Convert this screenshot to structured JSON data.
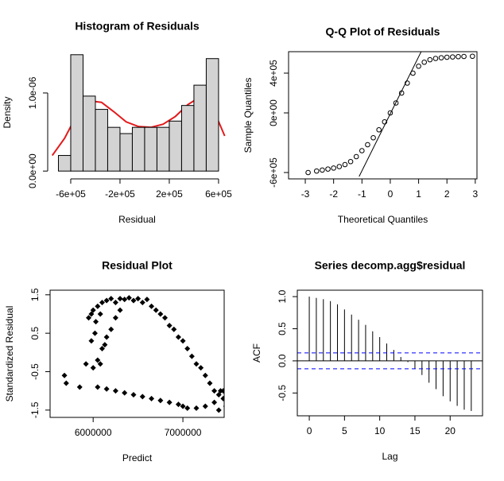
{
  "chart_data": [
    {
      "type": "histogram",
      "title": "Histogram of Residuals",
      "x_label": "Residual",
      "y_label": "Density",
      "bins": [
        -700000,
        -600000,
        -500000,
        -400000,
        -300000,
        -200000,
        -100000,
        0,
        100000,
        200000,
        300000,
        400000,
        500000,
        600000
      ],
      "values": [
        2e-07,
        1.49e-06,
        9.6e-07,
        7.9e-07,
        5.6e-07,
        4.8e-07,
        5.6e-07,
        5.6e-07,
        5.6e-07,
        6.4e-07,
        8.4e-07,
        1.1e-06,
        1.44e-06
      ],
      "color": "#d3d3d3",
      "curve": {
        "color": "#e31a1c",
        "x": [
          -750000,
          -650000,
          -550000,
          -450000,
          -350000,
          -250000,
          -150000,
          -50000,
          50000,
          150000,
          250000,
          350000,
          450000,
          550000,
          650000
        ],
        "values": [
          2e-07,
          4.2e-07,
          7.2e-07,
          9e-07,
          8.8e-07,
          7.6e-07,
          6.3e-07,
          5.7e-07,
          5.6e-07,
          6e-07,
          7e-07,
          8.5e-07,
          9.5e-07,
          8.2e-07,
          4.5e-07
        ]
      },
      "xlim": [
        -787000,
        665000
      ],
      "ylim": [
        -1e-07,
        1.6e-06
      ],
      "xticks": [
        {
          "value": -600000,
          "label": "-6e+05"
        },
        {
          "value": -200000,
          "label": "-2e+05"
        },
        {
          "value": 200000,
          "label": "2e+05"
        },
        {
          "value": 600000,
          "label": "6e+05"
        }
      ],
      "yticks": [
        {
          "value": 0,
          "label": "0.0e+00"
        },
        {
          "value": 1e-06,
          "label": "1.0e-06"
        }
      ]
    },
    {
      "type": "scatter",
      "title": "Q-Q Plot of Residuals",
      "x_label": "Theoretical Quantiles",
      "y_label": "Sample Quantiles",
      "marker": "circle",
      "color": "#000000",
      "x": [
        -2.9,
        -2.6,
        -2.4,
        -2.2,
        -2.0,
        -1.8,
        -1.6,
        -1.4,
        -1.2,
        -1.0,
        -0.8,
        -0.6,
        -0.4,
        -0.2,
        0,
        0.2,
        0.4,
        0.6,
        0.8,
        1.0,
        1.2,
        1.4,
        1.6,
        1.8,
        2.0,
        2.2,
        2.4,
        2.6,
        2.9
      ],
      "values": [
        -600000,
        -585000,
        -575000,
        -565000,
        -555000,
        -540000,
        -520000,
        -490000,
        -440000,
        -380000,
        -320000,
        -250000,
        -170000,
        -90000,
        0,
        100000,
        200000,
        300000,
        400000,
        470000,
        510000,
        535000,
        548000,
        555000,
        560000,
        563000,
        566000,
        568000,
        570000
      ],
      "line": {
        "color": "#000000",
        "x": [
          -1.1,
          1.09
        ],
        "values": [
          -640000,
          616000
        ]
      },
      "xlim": [
        -3.59,
        3.06
      ],
      "ylim": [
        -664000,
        616000
      ],
      "xticks": [
        -3,
        -2,
        -1,
        0,
        1,
        2,
        3
      ],
      "yticks": [
        {
          "value": -600000,
          "label": "-6e+05"
        },
        {
          "value": 0,
          "label": "0e+00"
        },
        {
          "value": 400000,
          "label": "4e+05"
        }
      ]
    },
    {
      "type": "scatter",
      "title": "Residual Plot",
      "x_label": "Predict",
      "y_label": "Standardized Residual",
      "marker": "diamond",
      "color": "#000000",
      "x": [
        5950000,
        5980000,
        6000000,
        6030000,
        6050000,
        6080000,
        6100000,
        6150000,
        6200000,
        6250000,
        6300000,
        6350000,
        6400000,
        6450000,
        6500000,
        6550000,
        6600000,
        6650000,
        6700000,
        6750000,
        6800000,
        6850000,
        6900000,
        6950000,
        7000000,
        7050000,
        7100000,
        7150000,
        7200000,
        7250000,
        7300000,
        7350000,
        7400000,
        7450000,
        7500000,
        6000000,
        6050000,
        6100000,
        6150000,
        6200000,
        6250000,
        6300000,
        6080000,
        6130000,
        5680000,
        5700000,
        5850000,
        5920000,
        5980000,
        6020000,
        6050000,
        6150000,
        6250000,
        6350000,
        6450000,
        6550000,
        6650000,
        6750000,
        6850000,
        6950000,
        7050000,
        7150000,
        7250000,
        7350000,
        7420000,
        7480000,
        7400000,
        7000000,
        7450000,
        7520000,
        7550000
      ],
      "values": [
        0.9,
        1.0,
        1.1,
        0.8,
        1.2,
        1.0,
        1.3,
        1.35,
        1.4,
        1.3,
        1.4,
        1.38,
        1.42,
        1.35,
        1.4,
        1.3,
        1.38,
        1.2,
        1.1,
        1.0,
        0.9,
        0.7,
        0.6,
        0.4,
        0.3,
        0.1,
        -0.1,
        -0.3,
        -0.4,
        -0.6,
        -0.8,
        -1.0,
        -1.1,
        -1.2,
        -1.3,
        -0.4,
        -0.2,
        0.1,
        0.4,
        0.6,
        0.9,
        1.1,
        -0.3,
        0.2,
        -0.6,
        -0.8,
        -0.9,
        -0.3,
        0.3,
        0.5,
        -0.9,
        -0.95,
        -1.0,
        -1.05,
        -1.1,
        -1.15,
        -1.2,
        -1.25,
        -1.3,
        -1.35,
        -1.45,
        -1.45,
        -1.4,
        -1.3,
        -1.0,
        -1.4,
        -1.5,
        -1.4,
        -1.0,
        -1.1,
        -1.2
      ],
      "xlim": [
        5520000,
        7460000
      ],
      "ylim": [
        -1.69,
        1.62
      ],
      "xticks": [
        6000000,
        7000000
      ],
      "yticks": [
        -1.5,
        -0.5,
        0.5,
        1.5
      ]
    },
    {
      "type": "stem",
      "title": "Series  decomp.agg$residual",
      "x_label": "Lag",
      "y_label": "ACF",
      "color": "#000000",
      "x": [
        0,
        1,
        2,
        3,
        4,
        5,
        6,
        7,
        8,
        9,
        10,
        11,
        12,
        13,
        14,
        15,
        16,
        17,
        18,
        19,
        20,
        21,
        22,
        23
      ],
      "values": [
        1.0,
        0.98,
        0.96,
        0.93,
        0.88,
        0.8,
        0.72,
        0.64,
        0.56,
        0.46,
        0.37,
        0.27,
        0.17,
        0.06,
        -0.02,
        -0.12,
        -0.22,
        -0.34,
        -0.44,
        -0.55,
        -0.63,
        -0.7,
        -0.76,
        -0.78
      ],
      "ci_lines": [
        0.124,
        -0.124
      ],
      "ci_color": "#0000ff",
      "xlim": [
        -1.7,
        24.6
      ],
      "ylim": [
        -0.855,
        1.1
      ],
      "xticks": [
        0,
        5,
        10,
        15,
        20
      ],
      "yticks": [
        -0.5,
        {
          "value": 0,
          "label": "0.0"
        },
        0.5,
        {
          "value": 1,
          "label": "1.0"
        }
      ]
    }
  ]
}
